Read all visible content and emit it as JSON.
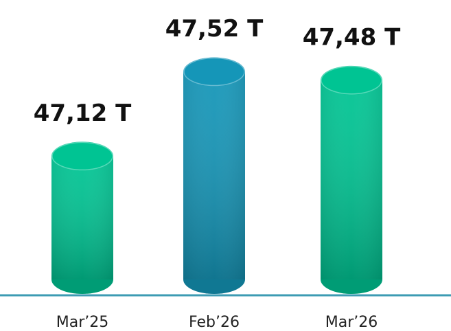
{
  "chart_data": {
    "type": "bar",
    "categories": [
      "Mar’25",
      "Feb’26",
      "Mar’26"
    ],
    "values": [
      47.12,
      47.52,
      47.48
    ],
    "value_labels": [
      "47,12 T",
      "47,52 T",
      "47,48 T"
    ],
    "colors": [
      "#00c493",
      "#1596b8",
      "#00c493"
    ],
    "ylim": [
      46.46,
      47.6
    ]
  }
}
